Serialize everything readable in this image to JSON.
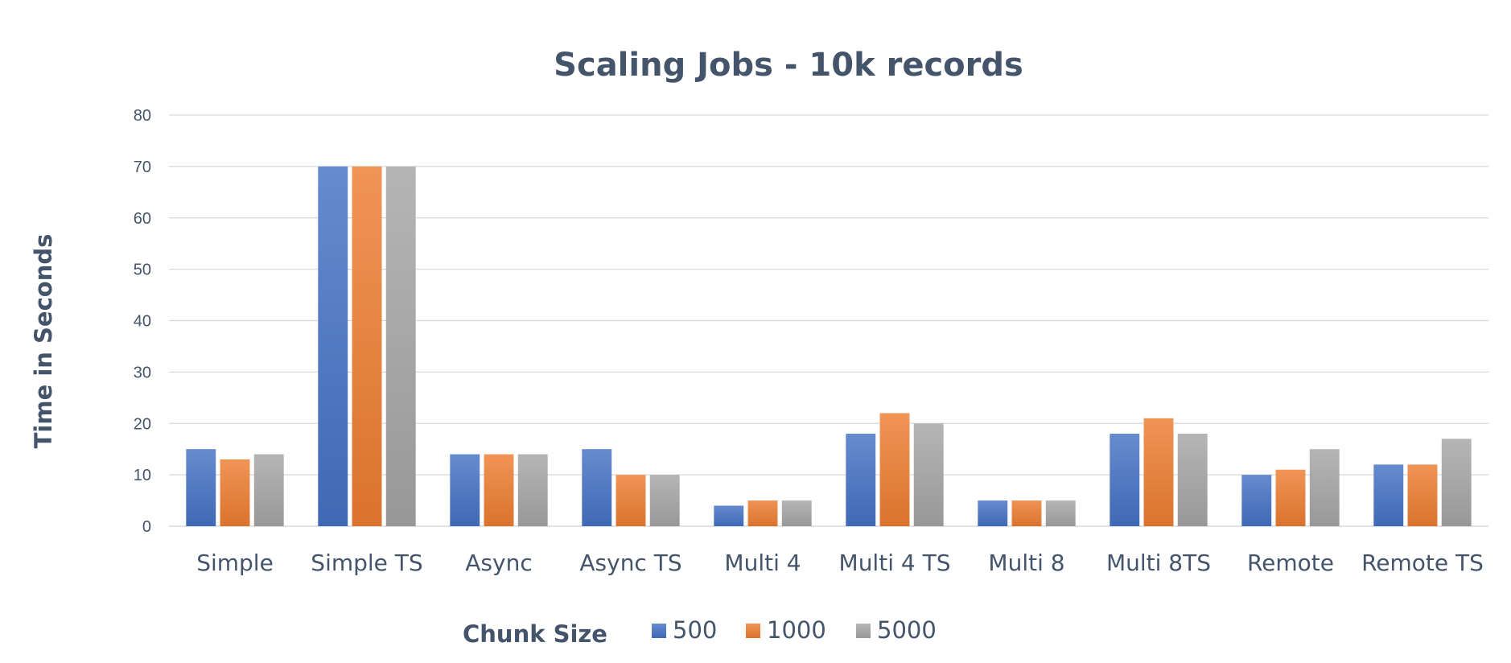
{
  "chart_data": {
    "type": "bar",
    "title": "Scaling Jobs - 10k records",
    "xlabel": "",
    "ylabel": "Time in Seconds",
    "ylim": [
      0,
      80
    ],
    "yticks": [
      0,
      10,
      20,
      30,
      40,
      50,
      60,
      70,
      80
    ],
    "grid": true,
    "legend_title": "Chunk Size",
    "legend_position": "bottom",
    "categories": [
      "Simple",
      "Simple TS",
      "Async",
      "Async TS",
      "Multi 4",
      "Multi 4 TS",
      "Multi 8",
      "Multi 8TS",
      "Remote",
      "Remote TS"
    ],
    "series": [
      {
        "name": "500",
        "color": "#4472c4",
        "values": [
          15,
          70,
          14,
          15,
          4,
          18,
          5,
          18,
          10,
          12
        ]
      },
      {
        "name": "1000",
        "color": "#ed7d31",
        "values": [
          13,
          70,
          14,
          10,
          5,
          22,
          5,
          21,
          11,
          12
        ]
      },
      {
        "name": "5000",
        "color": "#a5a5a5",
        "values": [
          14,
          70,
          14,
          10,
          5,
          20,
          5,
          18,
          15,
          17
        ]
      }
    ]
  }
}
